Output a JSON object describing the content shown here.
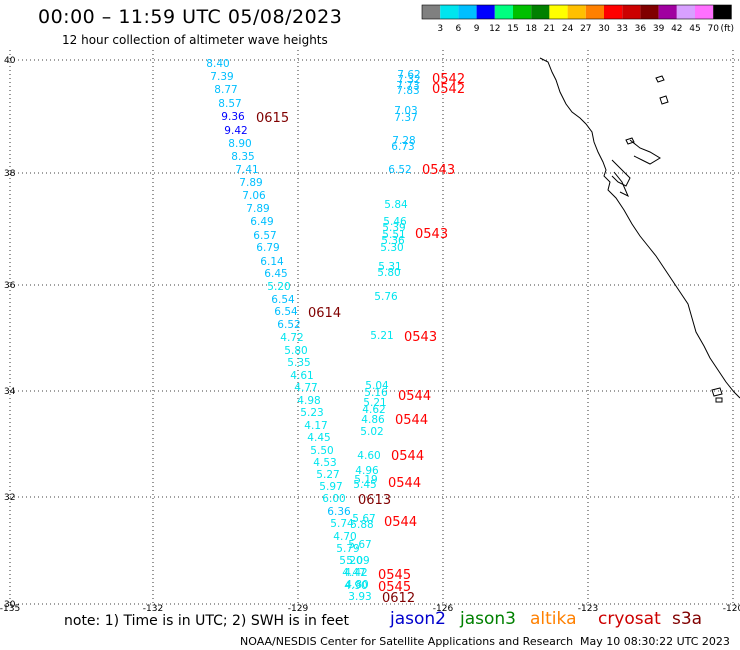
{
  "header": {
    "title": "00:00 – 11:59 UTC 05/08/2023",
    "subtitle": "12 hour collection of altimeter wave heights"
  },
  "legend": {
    "unit": "(ft)",
    "ticks": [
      "3",
      "6",
      "9",
      "12",
      "15",
      "18",
      "21",
      "24",
      "27",
      "30",
      "33",
      "36",
      "39",
      "42",
      "45",
      "70"
    ],
    "colors": [
      "#808080",
      "#00e5ee",
      "#00bfff",
      "#0000ff",
      "#00ff80",
      "#00c000",
      "#008000",
      "#ffff00",
      "#ffc000",
      "#ff8000",
      "#ff0000",
      "#cc0000",
      "#800000",
      "#a000a0",
      "#d8a0ff",
      "#ff70ff",
      "#000000"
    ]
  },
  "axes": {
    "lon_labels": [
      "-135",
      "-132",
      "-129",
      "-126",
      "-123",
      "-120"
    ],
    "lat_labels": [
      "30",
      "32",
      "34",
      "36",
      "38",
      "40"
    ]
  },
  "points": [
    {
      "v": "8.40",
      "c": "#00bfff"
    },
    {
      "v": "7.39",
      "c": "#00bfff"
    },
    {
      "v": "8.77",
      "c": "#00bfff"
    },
    {
      "v": "8.57",
      "c": "#00bfff"
    },
    {
      "v": "9.36",
      "c": "#0000ff"
    },
    {
      "v": "9.42",
      "c": "#0000ff"
    },
    {
      "v": "8.90",
      "c": "#00bfff"
    },
    {
      "v": "8.35",
      "c": "#00bfff"
    },
    {
      "v": "7.41",
      "c": "#00bfff"
    },
    {
      "v": "7.89",
      "c": "#00bfff"
    },
    {
      "v": "7.06",
      "c": "#00bfff"
    },
    {
      "v": "7.89",
      "c": "#00bfff"
    },
    {
      "v": "6.49",
      "c": "#00bfff"
    },
    {
      "v": "6.57",
      "c": "#00bfff"
    },
    {
      "v": "6.79",
      "c": "#00bfff"
    },
    {
      "v": "6.14",
      "c": "#00bfff"
    },
    {
      "v": "6.45",
      "c": "#00bfff"
    },
    {
      "v": "5.20",
      "c": "#00e5ee"
    },
    {
      "v": "6.54",
      "c": "#00bfff"
    },
    {
      "v": "6.54",
      "c": "#00bfff"
    },
    {
      "v": "6.52",
      "c": "#00bfff"
    },
    {
      "v": "4.72",
      "c": "#00e5ee"
    },
    {
      "v": "5.80",
      "c": "#00e5ee"
    },
    {
      "v": "5.35",
      "c": "#00e5ee"
    },
    {
      "v": "4.61",
      "c": "#00e5ee"
    },
    {
      "v": "4.77",
      "c": "#00e5ee"
    },
    {
      "v": "4.98",
      "c": "#00e5ee"
    },
    {
      "v": "5.23",
      "c": "#00e5ee"
    },
    {
      "v": "4.17",
      "c": "#00e5ee"
    },
    {
      "v": "4.45",
      "c": "#00e5ee"
    },
    {
      "v": "5.50",
      "c": "#00e5ee"
    },
    {
      "v": "4.53",
      "c": "#00e5ee"
    },
    {
      "v": "5.27",
      "c": "#00e5ee"
    },
    {
      "v": "5.97",
      "c": "#00e5ee"
    },
    {
      "v": "6.00",
      "c": "#00e5ee"
    },
    {
      "v": "6.36",
      "c": "#00bfff"
    },
    {
      "v": "5.74",
      "c": "#00e5ee"
    },
    {
      "v": "4.70",
      "c": "#00e5ee"
    },
    {
      "v": "5.79",
      "c": "#00e5ee"
    },
    {
      "v": "5.20",
      "c": "#00e5ee"
    },
    {
      "v": "4.47",
      "c": "#00e5ee"
    },
    {
      "v": "4.80",
      "c": "#00e5ee"
    },
    {
      "v": "3.93",
      "c": "#00e5ee"
    },
    {
      "v": "7.62",
      "c": "#00bfff"
    },
    {
      "v": "7.32",
      "c": "#00bfff"
    },
    {
      "v": "7.73",
      "c": "#00bfff"
    },
    {
      "v": "7.83",
      "c": "#00bfff"
    },
    {
      "v": "7.03",
      "c": "#00bfff"
    },
    {
      "v": "7.37",
      "c": "#00bfff"
    },
    {
      "v": "7.28",
      "c": "#00bfff"
    },
    {
      "v": "6.73",
      "c": "#00bfff"
    },
    {
      "v": "6.52",
      "c": "#00bfff"
    },
    {
      "v": "5.84",
      "c": "#00e5ee"
    },
    {
      "v": "5.46",
      "c": "#00e5ee"
    },
    {
      "v": "5.39",
      "c": "#00e5ee"
    },
    {
      "v": "5.51",
      "c": "#00e5ee"
    },
    {
      "v": "5.36",
      "c": "#00e5ee"
    },
    {
      "v": "5.30",
      "c": "#00e5ee"
    },
    {
      "v": "5.31",
      "c": "#00e5ee"
    },
    {
      "v": "5.80",
      "c": "#00e5ee"
    },
    {
      "v": "5.76",
      "c": "#00e5ee"
    },
    {
      "v": "5.21",
      "c": "#00e5ee"
    },
    {
      "v": "5.04",
      "c": "#00e5ee"
    },
    {
      "v": "5.16",
      "c": "#00e5ee"
    },
    {
      "v": "5.21",
      "c": "#00e5ee"
    },
    {
      "v": "4.62",
      "c": "#00e5ee"
    },
    {
      "v": "4.86",
      "c": "#00e5ee"
    },
    {
      "v": "5.02",
      "c": "#00e5ee"
    },
    {
      "v": "4.60",
      "c": "#00e5ee"
    },
    {
      "v": "4.96",
      "c": "#00e5ee"
    },
    {
      "v": "5.19",
      "c": "#00e5ee"
    },
    {
      "v": "5.45",
      "c": "#00e5ee"
    },
    {
      "v": "5.67",
      "c": "#00e5ee"
    },
    {
      "v": "5.88",
      "c": "#00e5ee"
    },
    {
      "v": "5.67",
      "c": "#00e5ee"
    },
    {
      "v": "5.09",
      "c": "#00e5ee"
    },
    {
      "v": "4.42",
      "c": "#00e5ee"
    },
    {
      "v": "4.90",
      "c": "#00e5ee"
    },
    {
      "v": "4.82",
      "c": "#00e5ee"
    }
  ],
  "pass_labels": [
    {
      "t": "0542",
      "c": "#ff0000"
    },
    {
      "t": "0542",
      "c": "#ff0000"
    },
    {
      "t": "0615",
      "c": "#800000"
    },
    {
      "t": "0543",
      "c": "#ff0000"
    },
    {
      "t": "0543",
      "c": "#ff0000"
    },
    {
      "t": "0614",
      "c": "#800000"
    },
    {
      "t": "0543",
      "c": "#ff0000"
    },
    {
      "t": "0544",
      "c": "#ff0000"
    },
    {
      "t": "0544",
      "c": "#ff0000"
    },
    {
      "t": "0544",
      "c": "#ff0000"
    },
    {
      "t": "0544",
      "c": "#ff0000"
    },
    {
      "t": "0613",
      "c": "#800000"
    },
    {
      "t": "0544",
      "c": "#ff0000"
    },
    {
      "t": "0545",
      "c": "#ff0000"
    },
    {
      "t": "0545",
      "c": "#ff0000"
    },
    {
      "t": "0612",
      "c": "#800000"
    }
  ],
  "footer": {
    "note": "note:  1) Time is in UTC;  2) SWH is in feet",
    "satellites": [
      {
        "name": "jason2",
        "color": "#0000cc"
      },
      {
        "name": "jason3",
        "color": "#008000"
      },
      {
        "name": "altika",
        "color": "#ff8000"
      },
      {
        "name": "cryosat",
        "color": "#cc0000"
      },
      {
        "name": "s3a",
        "color": "#800000"
      }
    ],
    "credit": "NOAA/NESDIS Center for Satellite Applications and Research",
    "timestamp": "May 10 08:30:22 UTC 2023"
  }
}
